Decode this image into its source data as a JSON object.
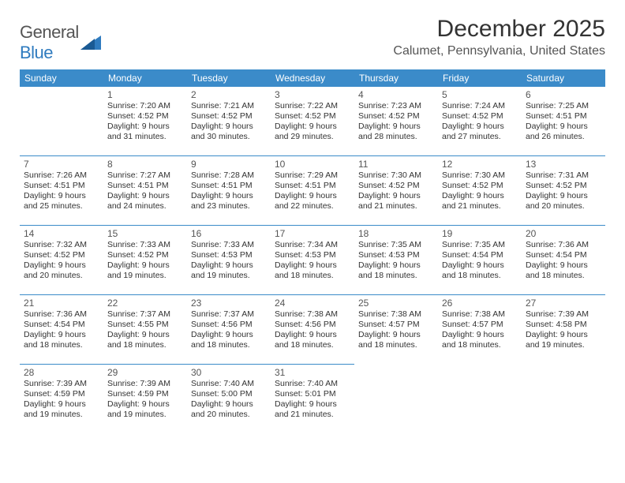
{
  "logo": {
    "general": "General",
    "blue": "Blue"
  },
  "title": "December 2025",
  "location": "Calumet, Pennsylvania, United States",
  "colors": {
    "header_bg": "#3b8bc9",
    "header_text": "#ffffff",
    "cell_border": "#3b8bc9",
    "text": "#333333",
    "logo_gray": "#555555",
    "logo_blue": "#2f7bbf"
  },
  "days": [
    "Sunday",
    "Monday",
    "Tuesday",
    "Wednesday",
    "Thursday",
    "Friday",
    "Saturday"
  ],
  "weeks": [
    [
      null,
      {
        "n": "1",
        "sr": "7:20 AM",
        "ss": "4:52 PM",
        "dl": "9 hours and 31 minutes."
      },
      {
        "n": "2",
        "sr": "7:21 AM",
        "ss": "4:52 PM",
        "dl": "9 hours and 30 minutes."
      },
      {
        "n": "3",
        "sr": "7:22 AM",
        "ss": "4:52 PM",
        "dl": "9 hours and 29 minutes."
      },
      {
        "n": "4",
        "sr": "7:23 AM",
        "ss": "4:52 PM",
        "dl": "9 hours and 28 minutes."
      },
      {
        "n": "5",
        "sr": "7:24 AM",
        "ss": "4:52 PM",
        "dl": "9 hours and 27 minutes."
      },
      {
        "n": "6",
        "sr": "7:25 AM",
        "ss": "4:51 PM",
        "dl": "9 hours and 26 minutes."
      }
    ],
    [
      {
        "n": "7",
        "sr": "7:26 AM",
        "ss": "4:51 PM",
        "dl": "9 hours and 25 minutes."
      },
      {
        "n": "8",
        "sr": "7:27 AM",
        "ss": "4:51 PM",
        "dl": "9 hours and 24 minutes."
      },
      {
        "n": "9",
        "sr": "7:28 AM",
        "ss": "4:51 PM",
        "dl": "9 hours and 23 minutes."
      },
      {
        "n": "10",
        "sr": "7:29 AM",
        "ss": "4:51 PM",
        "dl": "9 hours and 22 minutes."
      },
      {
        "n": "11",
        "sr": "7:30 AM",
        "ss": "4:52 PM",
        "dl": "9 hours and 21 minutes."
      },
      {
        "n": "12",
        "sr": "7:30 AM",
        "ss": "4:52 PM",
        "dl": "9 hours and 21 minutes."
      },
      {
        "n": "13",
        "sr": "7:31 AM",
        "ss": "4:52 PM",
        "dl": "9 hours and 20 minutes."
      }
    ],
    [
      {
        "n": "14",
        "sr": "7:32 AM",
        "ss": "4:52 PM",
        "dl": "9 hours and 20 minutes."
      },
      {
        "n": "15",
        "sr": "7:33 AM",
        "ss": "4:52 PM",
        "dl": "9 hours and 19 minutes."
      },
      {
        "n": "16",
        "sr": "7:33 AM",
        "ss": "4:53 PM",
        "dl": "9 hours and 19 minutes."
      },
      {
        "n": "17",
        "sr": "7:34 AM",
        "ss": "4:53 PM",
        "dl": "9 hours and 18 minutes."
      },
      {
        "n": "18",
        "sr": "7:35 AM",
        "ss": "4:53 PM",
        "dl": "9 hours and 18 minutes."
      },
      {
        "n": "19",
        "sr": "7:35 AM",
        "ss": "4:54 PM",
        "dl": "9 hours and 18 minutes."
      },
      {
        "n": "20",
        "sr": "7:36 AM",
        "ss": "4:54 PM",
        "dl": "9 hours and 18 minutes."
      }
    ],
    [
      {
        "n": "21",
        "sr": "7:36 AM",
        "ss": "4:54 PM",
        "dl": "9 hours and 18 minutes."
      },
      {
        "n": "22",
        "sr": "7:37 AM",
        "ss": "4:55 PM",
        "dl": "9 hours and 18 minutes."
      },
      {
        "n": "23",
        "sr": "7:37 AM",
        "ss": "4:56 PM",
        "dl": "9 hours and 18 minutes."
      },
      {
        "n": "24",
        "sr": "7:38 AM",
        "ss": "4:56 PM",
        "dl": "9 hours and 18 minutes."
      },
      {
        "n": "25",
        "sr": "7:38 AM",
        "ss": "4:57 PM",
        "dl": "9 hours and 18 minutes."
      },
      {
        "n": "26",
        "sr": "7:38 AM",
        "ss": "4:57 PM",
        "dl": "9 hours and 18 minutes."
      },
      {
        "n": "27",
        "sr": "7:39 AM",
        "ss": "4:58 PM",
        "dl": "9 hours and 19 minutes."
      }
    ],
    [
      {
        "n": "28",
        "sr": "7:39 AM",
        "ss": "4:59 PM",
        "dl": "9 hours and 19 minutes."
      },
      {
        "n": "29",
        "sr": "7:39 AM",
        "ss": "4:59 PM",
        "dl": "9 hours and 19 minutes."
      },
      {
        "n": "30",
        "sr": "7:40 AM",
        "ss": "5:00 PM",
        "dl": "9 hours and 20 minutes."
      },
      {
        "n": "31",
        "sr": "7:40 AM",
        "ss": "5:01 PM",
        "dl": "9 hours and 21 minutes."
      },
      null,
      null,
      null
    ]
  ],
  "labels": {
    "sunrise": "Sunrise: ",
    "sunset": "Sunset: ",
    "daylight": "Daylight: "
  }
}
